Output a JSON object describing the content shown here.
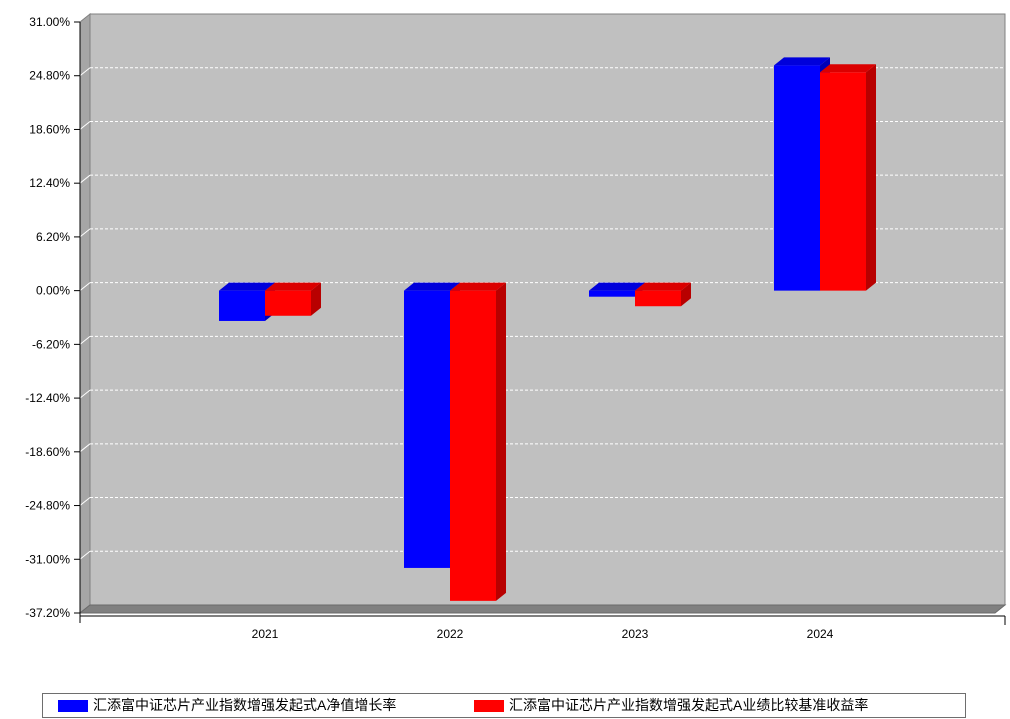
{
  "chart_data": {
    "type": "bar",
    "style": "3d",
    "categories": [
      "2021",
      "2022",
      "2023",
      "2024"
    ],
    "series": [
      {
        "name": "汇添富中证芯片产业指数增强发起式A净值增长率",
        "color": "#0000ff",
        "values": [
          -3.5,
          -32.0,
          -0.7,
          26.0
        ]
      },
      {
        "name": "汇添富中证芯片产业指数增强发起式A业绩比较基准收益率",
        "color": "#ff0000",
        "values": [
          -2.9,
          -35.8,
          -1.8,
          25.2
        ]
      }
    ],
    "ylim": [
      -37.2,
      31.0
    ],
    "yticks": [
      31.0,
      24.8,
      18.6,
      12.4,
      6.2,
      0.0,
      -6.2,
      -12.4,
      -18.6,
      -24.8,
      -31.0,
      -37.2
    ],
    "ytick_labels": [
      "31.00%",
      "24.80%",
      "18.60%",
      "12.40%",
      "6.20%",
      "0.00%",
      "-6.20%",
      "-12.40%",
      "-18.60%",
      "-24.80%",
      "-31.00%",
      "-37.20%"
    ],
    "grid": true,
    "legend": "bottom",
    "background": "#c0c0c0"
  }
}
